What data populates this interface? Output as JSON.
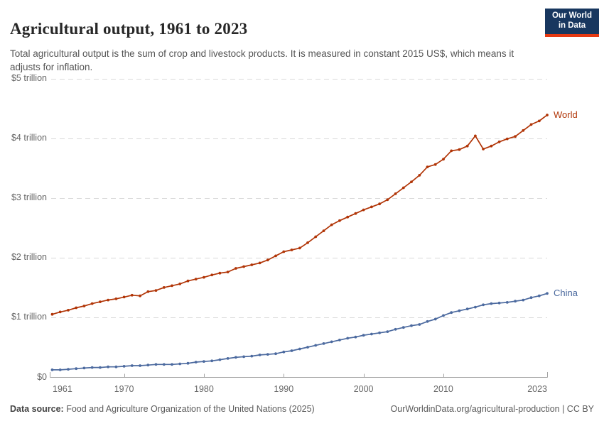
{
  "header": {
    "title": "Agricultural output, 1961 to 2023",
    "subtitle": "Total agricultural output is the sum of crop and livestock products. It is measured in constant 2015 US$, which means it adjusts for inflation."
  },
  "logo": {
    "line1": "Our World",
    "line2": "in Data",
    "bg_color": "#18375f",
    "accent_color": "#e63912"
  },
  "footer": {
    "left_bold": "Data source:",
    "left_text": " Food and Agriculture Organization of the United Nations (2025)",
    "right_text": "OurWorldinData.org/agricultural-production | CC BY"
  },
  "colors": {
    "grid": "#d9d9d9",
    "axis": "#a3a3a3",
    "tick_label": "#666666",
    "title": "#272727",
    "subtitle": "#555555",
    "footer": "#5b5b5b"
  },
  "chart_data": {
    "type": "line",
    "title": "Agricultural output, 1961 to 2023",
    "xlabel": "",
    "ylabel": "",
    "xlim": [
      1961,
      2023
    ],
    "ylim": [
      0,
      5
    ],
    "grid": "horizontal-dashed",
    "legend_position": "line-end-labels",
    "x_ticks": [
      1961,
      1970,
      1980,
      1990,
      2000,
      2010,
      2023
    ],
    "y_ticks": [
      {
        "value": 0,
        "label": "$0"
      },
      {
        "value": 1,
        "label": "$1 trillion"
      },
      {
        "value": 2,
        "label": "$2 trillion"
      },
      {
        "value": 3,
        "label": "$3 trillion"
      },
      {
        "value": 4,
        "label": "$4 trillion"
      },
      {
        "value": 5,
        "label": "$5 trillion"
      }
    ],
    "years": [
      1961,
      1962,
      1963,
      1964,
      1965,
      1966,
      1967,
      1968,
      1969,
      1970,
      1971,
      1972,
      1973,
      1974,
      1975,
      1976,
      1977,
      1978,
      1979,
      1980,
      1981,
      1982,
      1983,
      1984,
      1985,
      1986,
      1987,
      1988,
      1989,
      1990,
      1991,
      1992,
      1993,
      1994,
      1995,
      1996,
      1997,
      1998,
      1999,
      2000,
      2001,
      2002,
      2003,
      2004,
      2005,
      2006,
      2007,
      2008,
      2009,
      2010,
      2011,
      2012,
      2013,
      2014,
      2015,
      2016,
      2017,
      2018,
      2019,
      2020,
      2021,
      2022,
      2023
    ],
    "series": [
      {
        "name": "World",
        "color": "#b13507",
        "values": [
          1.05,
          1.09,
          1.12,
          1.16,
          1.19,
          1.23,
          1.26,
          1.29,
          1.31,
          1.34,
          1.37,
          1.36,
          1.43,
          1.45,
          1.5,
          1.53,
          1.56,
          1.61,
          1.64,
          1.67,
          1.71,
          1.74,
          1.76,
          1.82,
          1.85,
          1.88,
          1.91,
          1.96,
          2.03,
          2.1,
          2.13,
          2.16,
          2.25,
          2.35,
          2.45,
          2.55,
          2.62,
          2.68,
          2.74,
          2.8,
          2.85,
          2.9,
          2.97,
          3.07,
          3.17,
          3.27,
          3.38,
          3.52,
          3.56,
          3.65,
          3.79,
          3.81,
          3.87,
          4.04,
          3.82,
          3.87,
          3.94,
          3.99,
          4.03,
          4.13,
          4.23,
          4.29,
          4.39
        ]
      },
      {
        "name": "China",
        "color": "#4c6a9f",
        "values": [
          0.12,
          0.12,
          0.13,
          0.14,
          0.15,
          0.16,
          0.16,
          0.17,
          0.17,
          0.18,
          0.19,
          0.19,
          0.2,
          0.21,
          0.21,
          0.21,
          0.22,
          0.23,
          0.25,
          0.26,
          0.27,
          0.29,
          0.31,
          0.33,
          0.34,
          0.35,
          0.37,
          0.38,
          0.39,
          0.42,
          0.44,
          0.47,
          0.5,
          0.53,
          0.56,
          0.59,
          0.62,
          0.65,
          0.67,
          0.7,
          0.72,
          0.74,
          0.76,
          0.8,
          0.83,
          0.86,
          0.88,
          0.93,
          0.97,
          1.03,
          1.08,
          1.11,
          1.14,
          1.17,
          1.21,
          1.23,
          1.24,
          1.25,
          1.27,
          1.29,
          1.33,
          1.36,
          1.4
        ]
      }
    ]
  }
}
